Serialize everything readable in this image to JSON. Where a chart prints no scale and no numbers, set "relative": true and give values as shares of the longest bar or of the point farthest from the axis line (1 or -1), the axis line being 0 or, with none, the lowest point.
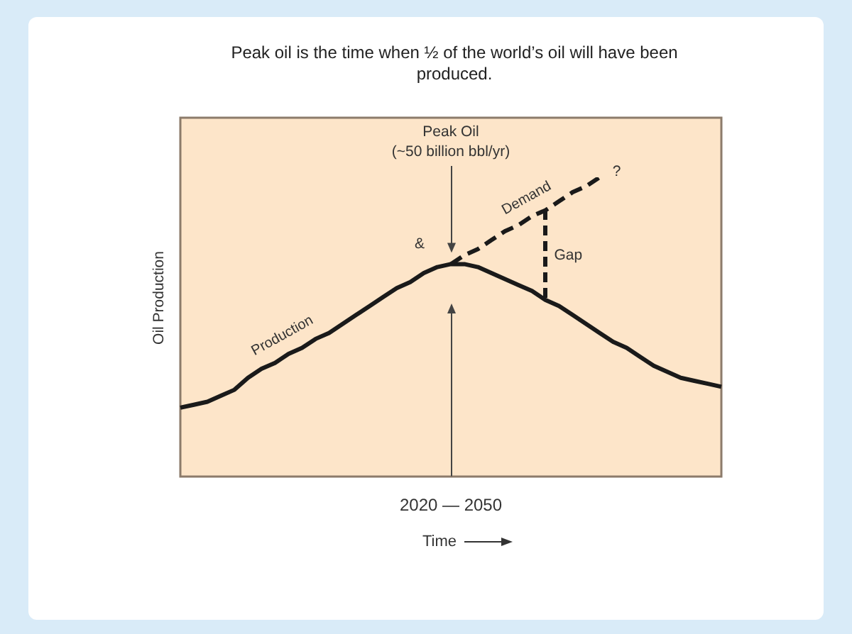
{
  "chart_data": {
    "type": "line",
    "title": "Peak oil is the time when ½ of the world’s oil will have been produced.",
    "xlabel": "Time",
    "ylabel": "Oil Production",
    "relative": true,
    "legend": false,
    "marker": "none",
    "annotations": [
      "Peak Oil",
      "(~50 billion bbl/yr)",
      "&",
      "?",
      "Gap",
      "2020 — 2050"
    ],
    "categories": [
      null,
      null,
      null,
      null,
      null,
      null,
      null,
      null,
      null,
      null,
      null,
      null,
      null,
      null,
      null,
      null,
      null,
      null,
      null,
      null,
      null,
      null,
      null,
      null,
      null,
      null,
      null,
      null,
      null,
      null,
      null,
      null,
      null,
      null,
      null,
      null,
      null,
      null,
      null,
      null,
      null
    ],
    "series": [
      {
        "name": "Production",
        "color": "#1a1a1a",
        "line_style": "solid",
        "values": [
          0.23,
          0.24,
          0.25,
          0.27,
          0.29,
          0.33,
          0.36,
          0.38,
          0.41,
          0.43,
          0.46,
          0.48,
          0.51,
          0.54,
          0.57,
          0.6,
          0.63,
          0.65,
          0.68,
          0.7,
          0.71,
          0.71,
          0.7,
          0.68,
          0.66,
          0.64,
          0.62,
          0.59,
          0.57,
          0.54,
          0.51,
          0.48,
          0.45,
          0.43,
          0.4,
          0.37,
          0.35,
          0.33,
          0.32,
          0.31,
          0.3
        ]
      },
      {
        "name": "Demand",
        "color": "#1a1a1a",
        "line_style": "dashed",
        "values": [
          null,
          null,
          null,
          null,
          null,
          null,
          null,
          null,
          null,
          null,
          null,
          null,
          null,
          null,
          null,
          null,
          null,
          null,
          null,
          null,
          0.71,
          0.74,
          0.76,
          0.79,
          0.82,
          0.84,
          0.87,
          0.89,
          0.92,
          0.95,
          0.97,
          1.0,
          null,
          null,
          null,
          null,
          null,
          null,
          null,
          null,
          null
        ]
      }
    ]
  }
}
